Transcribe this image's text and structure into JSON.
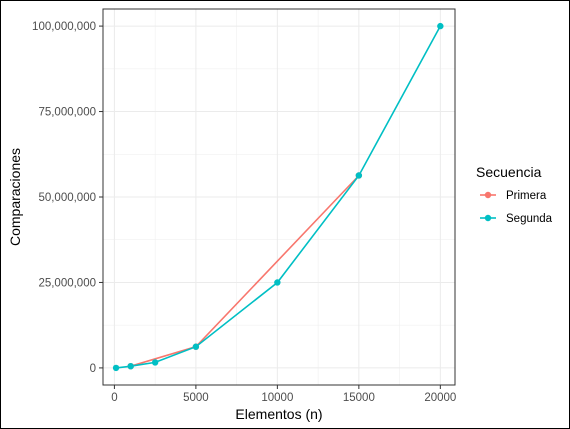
{
  "chart_data": {
    "type": "line",
    "xlabel": "Elementos (n)",
    "ylabel": "Comparaciones",
    "xlim": [
      -700,
      20900
    ],
    "ylim": [
      -5000000,
      105000000
    ],
    "x_ticks": [
      {
        "value": 0,
        "label": "0"
      },
      {
        "value": 5000,
        "label": "5000"
      },
      {
        "value": 10000,
        "label": "10000"
      },
      {
        "value": 15000,
        "label": "15000"
      },
      {
        "value": 20000,
        "label": "20000"
      }
    ],
    "y_ticks": [
      {
        "value": 0,
        "label": "0"
      },
      {
        "value": 25000000,
        "label": "25,000,000"
      },
      {
        "value": 50000000,
        "label": "50,000,000"
      },
      {
        "value": 75000000,
        "label": "75,000,000"
      },
      {
        "value": 100000000,
        "label": "100,000,000"
      }
    ],
    "grid": true,
    "legend": {
      "title": "Secuencia",
      "position": "right"
    },
    "series": [
      {
        "name": "Primera",
        "color": "#F8766D",
        "points": [
          [
            1000,
            500000
          ],
          [
            5000,
            6200000
          ],
          [
            15000,
            56300000
          ]
        ]
      },
      {
        "name": "Segunda",
        "color": "#00BFC4",
        "points": [
          [
            100,
            5000
          ],
          [
            1000,
            500000
          ],
          [
            2500,
            1600000
          ],
          [
            5000,
            6200000
          ],
          [
            10000,
            25000000
          ],
          [
            15000,
            56300000
          ],
          [
            20000,
            100000000
          ]
        ]
      }
    ]
  }
}
